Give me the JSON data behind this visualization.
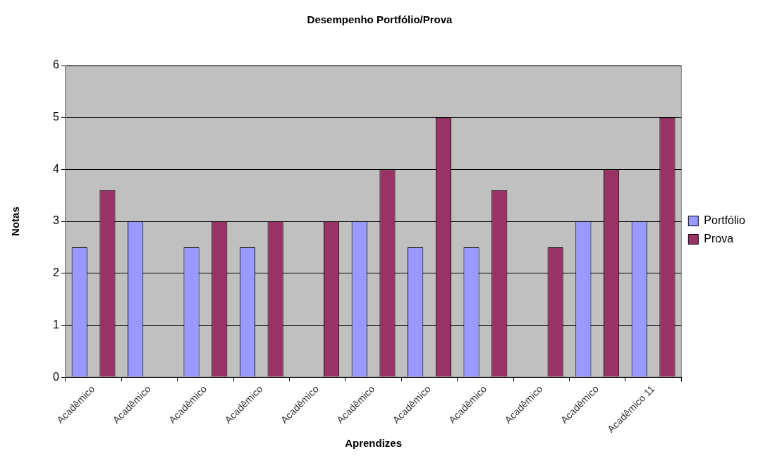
{
  "chart_data": {
    "type": "bar",
    "title": "Desempenho Portfólio/Prova",
    "xlabel": "Aprendizes",
    "ylabel": "Notas",
    "categories": [
      "Acadêmico",
      "Acadêmico",
      "Acadêmico",
      "Acadêmico",
      "Acadêmico",
      "Acadêmico",
      "Acadêmico",
      "Acadêmico",
      "Acadêmico",
      "Acadêmico",
      "Acadêmico 11"
    ],
    "series": [
      {
        "name": "Portfólio",
        "color": "#9999ff",
        "values": [
          2.5,
          3,
          2.5,
          2.5,
          null,
          3,
          2.5,
          2.5,
          null,
          3,
          3
        ]
      },
      {
        "name": "Prova",
        "color": "#993366",
        "values": [
          3.6,
          null,
          3,
          3,
          3,
          4,
          5,
          3.6,
          2.5,
          4,
          5
        ]
      }
    ],
    "ylim": [
      0,
      6
    ],
    "yticks": [
      0,
      1,
      2,
      3,
      4,
      5,
      6
    ],
    "grid": "y",
    "legend": "right"
  }
}
